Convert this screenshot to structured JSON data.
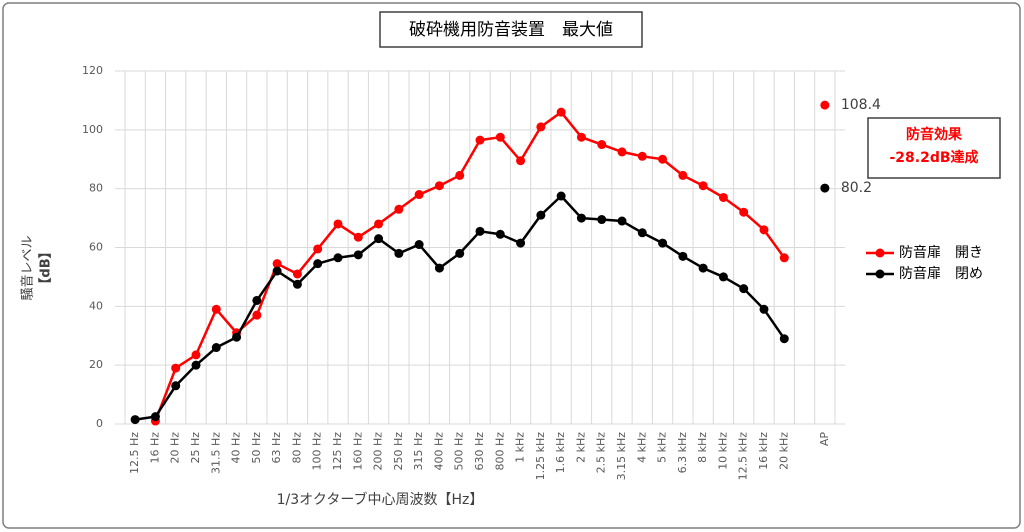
{
  "chart_data": {
    "type": "line",
    "title": "破砕機用防音装置　最大値",
    "x_label": "1/3オクターブ中心周波数【Hz】",
    "y_label": [
      "騒音レベル",
      "【dB】"
    ],
    "annotation": [
      "防音効果",
      "-28.2dB達成"
    ],
    "annotation_color": "#ff0000",
    "categories": [
      "12.5 Hz",
      "16 Hz",
      "20 Hz",
      "25 Hz",
      "31.5 Hz",
      "40 Hz",
      "50 Hz",
      "63 Hz",
      "80 Hz",
      "100 Hz",
      "125 Hz",
      "160 Hz",
      "200 Hz",
      "250 Hz",
      "315 Hz",
      "400 Hz",
      "500 Hz",
      "630 Hz",
      "800 Hz",
      "1 kHz",
      "1.25 kHz",
      "1.6 kHz",
      "2 kHz",
      "2.5 kHz",
      "3.15 kHz",
      "4 kHz",
      "5 kHz",
      "6.3 kHz",
      "8 kHz",
      "10 kHz",
      "12.5 kHz",
      "16 kHz",
      "20 kHz",
      null,
      "AP"
    ],
    "series": [
      {
        "name": "防音扉　開き",
        "color": "#ff0000",
        "values": [
          null,
          1,
          19,
          23.5,
          39,
          31,
          37,
          54.5,
          51,
          59.5,
          68,
          63.5,
          68,
          73,
          78,
          81,
          84.5,
          96.5,
          97.5,
          89.5,
          101,
          106,
          97.5,
          95,
          92.5,
          91,
          90,
          84.5,
          81,
          77,
          72,
          66,
          56.5,
          null,
          108.4
        ]
      },
      {
        "name": "防音扉　閉め",
        "color": "#000000",
        "values": [
          1.5,
          2.5,
          13,
          20,
          26,
          29.5,
          42,
          52,
          47.5,
          54.5,
          56.5,
          57.5,
          63,
          58,
          61,
          53,
          58,
          65.5,
          64.5,
          61.5,
          71,
          77.5,
          70,
          69.5,
          69,
          65,
          61.5,
          57,
          53,
          50,
          46,
          39,
          29,
          null,
          80.2
        ]
      }
    ],
    "ylim": [
      0,
      120
    ],
    "yticks": [
      0,
      20,
      40,
      60,
      80,
      100,
      120
    ],
    "grid": true,
    "legend": "right"
  }
}
